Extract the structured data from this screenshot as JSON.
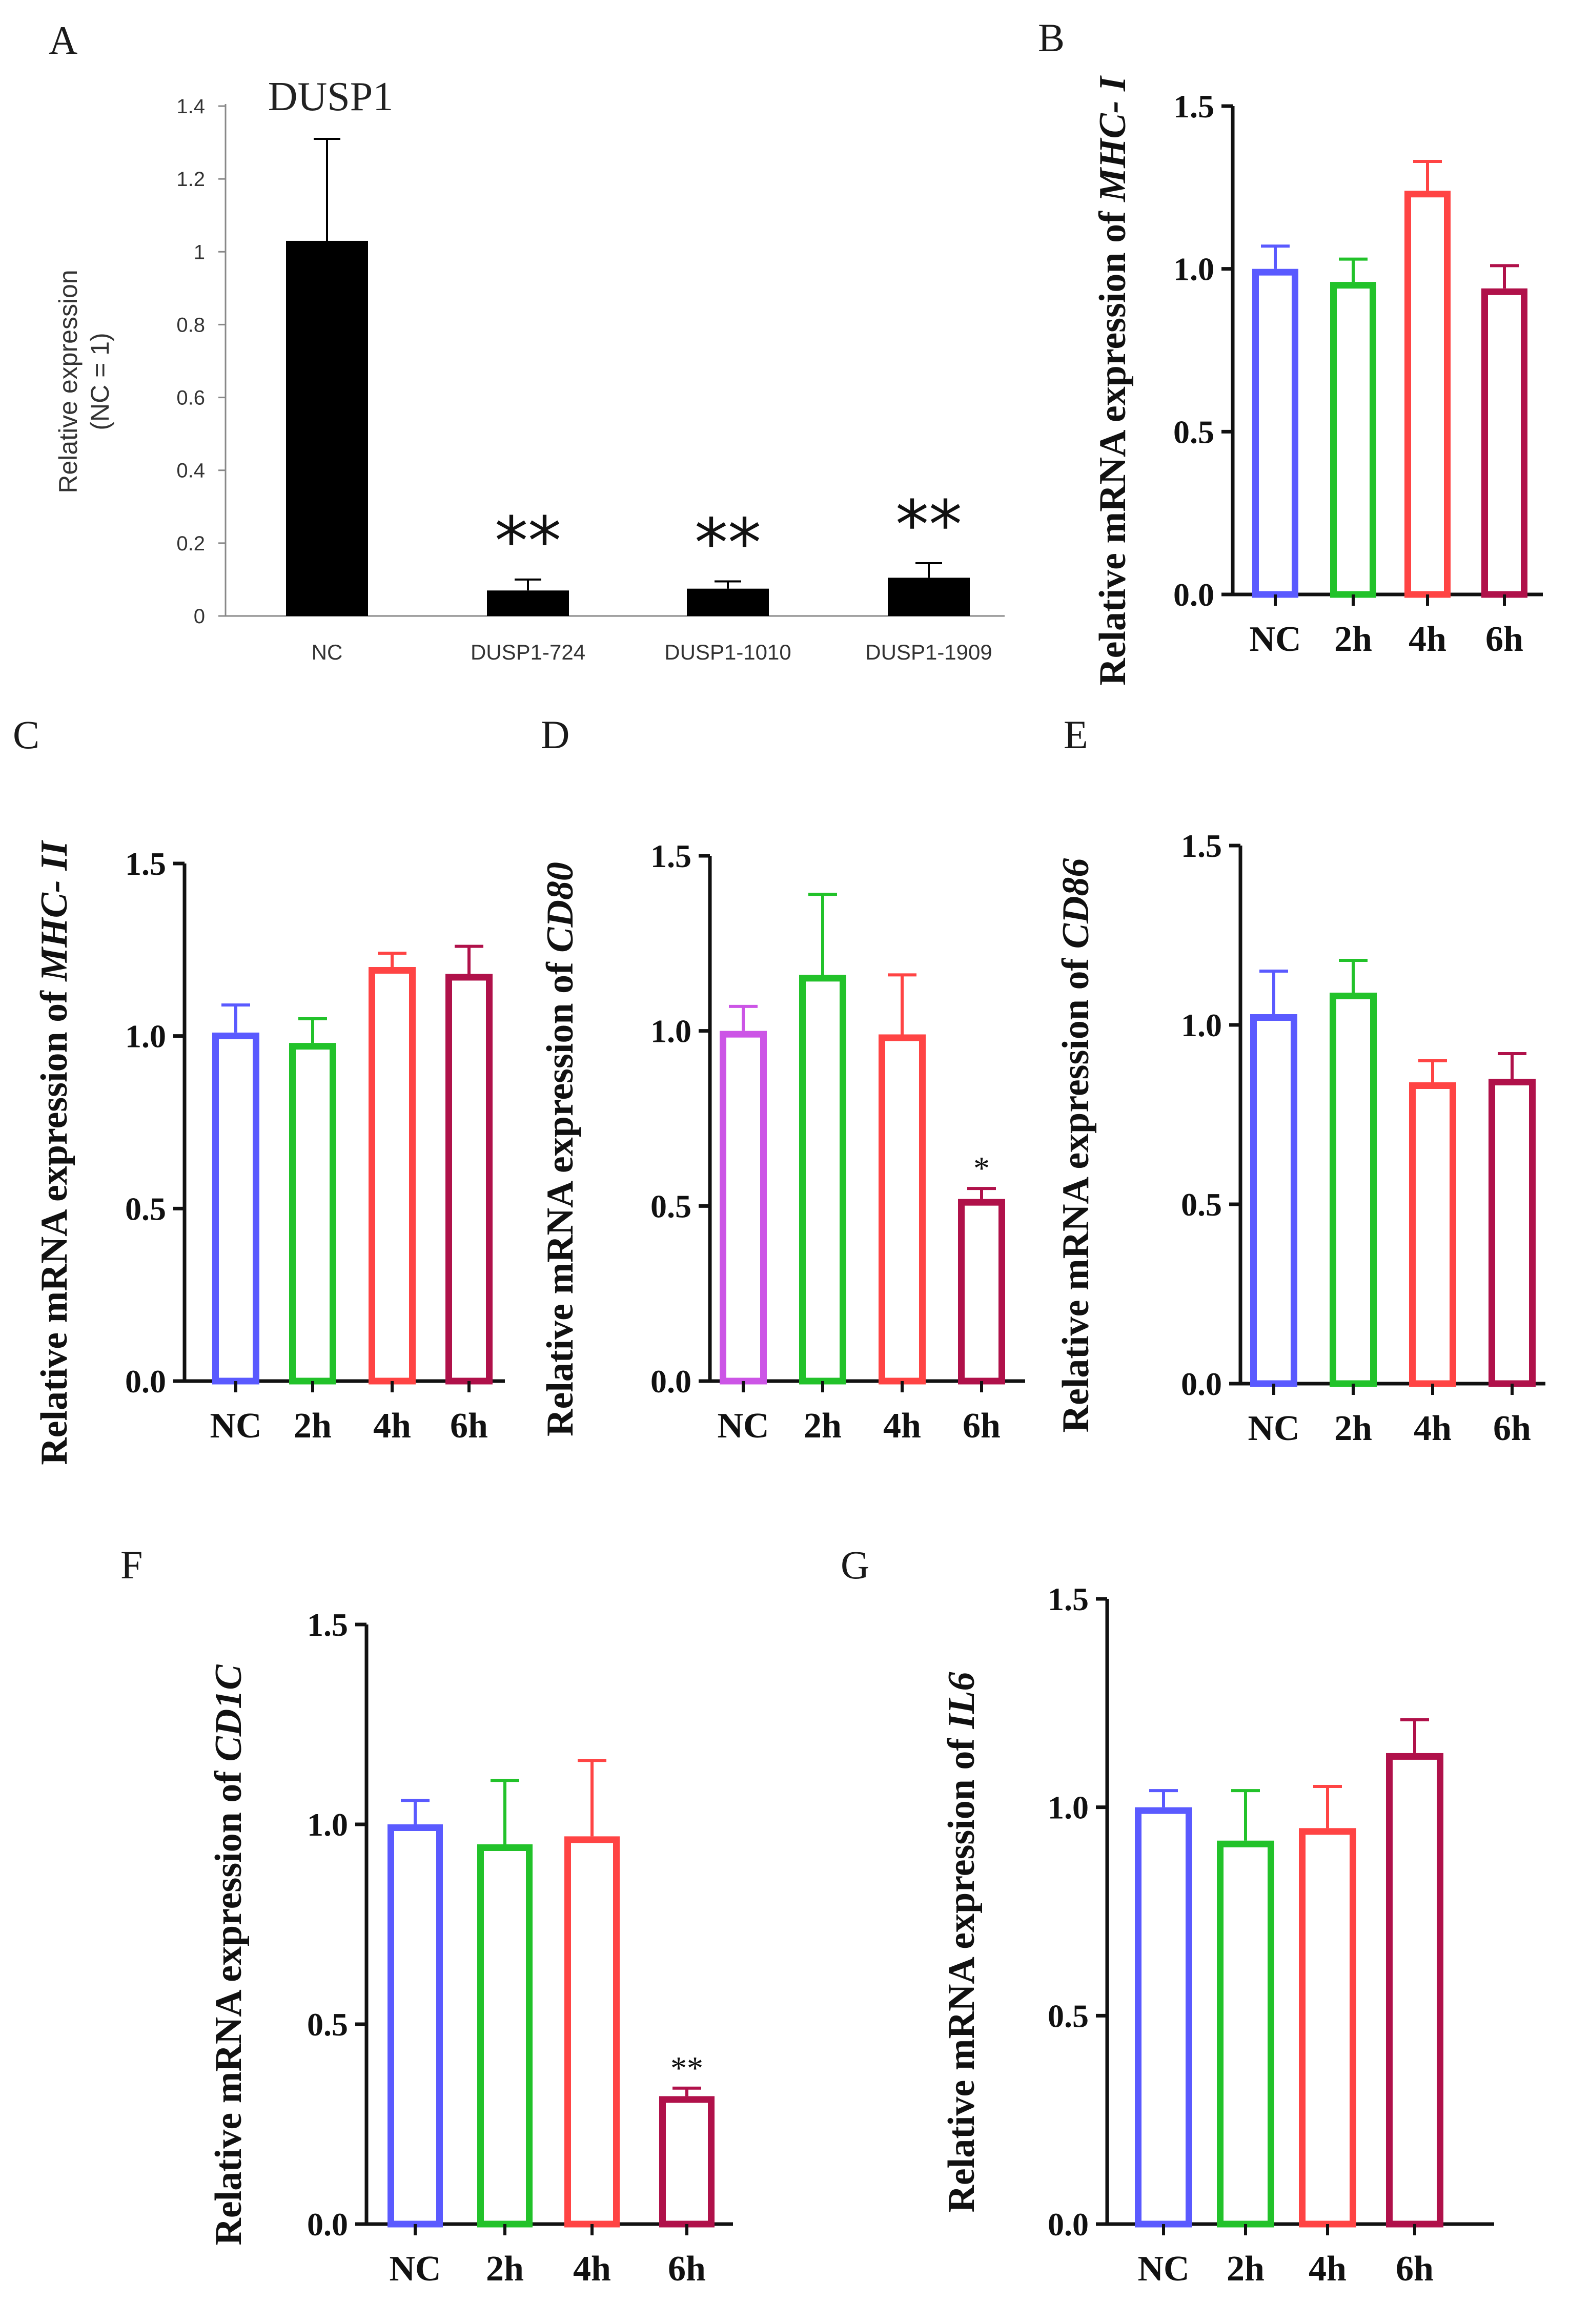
{
  "chart_data": [
    {
      "panel": "A",
      "type": "bar",
      "title": "DUSP1",
      "ylabel_lines": [
        "Relative expression",
        "(NC = 1)"
      ],
      "categories": [
        "NC",
        "DUSP1-724",
        "DUSP1-1010",
        "DUSP1-1909"
      ],
      "values": [
        1.03,
        0.07,
        0.075,
        0.105
      ],
      "errors": [
        0.28,
        0.03,
        0.02,
        0.04
      ],
      "ylim": [
        0,
        1.4
      ],
      "ticks": [
        "0",
        "0.2",
        "0.4",
        "0.6",
        "0.8",
        "1",
        "1.2",
        "1.4"
      ],
      "significance": [
        "",
        "**",
        "**",
        "**"
      ],
      "colors": [
        "#000000",
        "#000000",
        "#000000",
        "#000000"
      ]
    },
    {
      "panel": "B",
      "type": "bar",
      "ylabel_prefix": "Relative mRNA expression of ",
      "gene": "MHC- I",
      "categories": [
        "NC",
        "2h",
        "4h",
        "6h"
      ],
      "values": [
        1.0,
        0.96,
        1.24,
        0.94
      ],
      "errors": [
        0.07,
        0.07,
        0.09,
        0.07
      ],
      "ylim": [
        0,
        1.5
      ],
      "ticks": [
        "0.0",
        "0.5",
        "1.0",
        "1.5"
      ],
      "significance": [
        "",
        "",
        "",
        ""
      ],
      "colors": [
        "#5a5aff",
        "#22c22a",
        "#ff4444",
        "#b0114a"
      ]
    },
    {
      "panel": "C",
      "type": "bar",
      "ylabel_prefix": "Relative mRNA expression of ",
      "gene": "MHC- II",
      "categories": [
        "NC",
        "2h",
        "4h",
        "6h"
      ],
      "values": [
        1.01,
        0.98,
        1.2,
        1.18
      ],
      "errors": [
        0.08,
        0.07,
        0.04,
        0.08
      ],
      "ylim": [
        0,
        1.5
      ],
      "ticks": [
        "0.0",
        "0.5",
        "1.0",
        "1.5"
      ],
      "significance": [
        "",
        "",
        "",
        ""
      ],
      "colors": [
        "#5a5aff",
        "#22c22a",
        "#ff4444",
        "#b0114a"
      ]
    },
    {
      "panel": "D",
      "type": "bar",
      "ylabel_prefix": "Relative mRNA expression of ",
      "gene": "CD80",
      "categories": [
        "NC",
        "2h",
        "4h",
        "6h"
      ],
      "values": [
        1.0,
        1.16,
        0.99,
        0.52
      ],
      "errors": [
        0.07,
        0.23,
        0.17,
        0.03
      ],
      "ylim": [
        0,
        1.5
      ],
      "ticks": [
        "0.0",
        "0.5",
        "1.0",
        "1.5"
      ],
      "significance": [
        "",
        "",
        "",
        "*"
      ],
      "colors": [
        "#cc55e6",
        "#22c22a",
        "#ff4444",
        "#b0114a"
      ]
    },
    {
      "panel": "E",
      "type": "bar",
      "ylabel_prefix": "Relative mRNA expression of ",
      "gene": "CD86",
      "categories": [
        "NC",
        "2h",
        "4h",
        "6h"
      ],
      "values": [
        1.03,
        1.09,
        0.84,
        0.85
      ],
      "errors": [
        0.12,
        0.09,
        0.06,
        0.07
      ],
      "ylim": [
        0,
        1.5
      ],
      "ticks": [
        "0.0",
        "0.5",
        "1.0",
        "1.5"
      ],
      "significance": [
        "",
        "",
        "",
        ""
      ],
      "colors": [
        "#5a5aff",
        "#22c22a",
        "#ff4444",
        "#b0114a"
      ]
    },
    {
      "panel": "F",
      "type": "bar",
      "ylabel_prefix": "Relative mRNA expression of ",
      "gene": "CD1C",
      "categories": [
        "NC",
        "2h",
        "4h",
        "6h"
      ],
      "values": [
        1.0,
        0.95,
        0.97,
        0.32
      ],
      "errors": [
        0.06,
        0.16,
        0.19,
        0.02
      ],
      "ylim": [
        0,
        1.5
      ],
      "ticks": [
        "0.0",
        "0.5",
        "1.0",
        "1.5"
      ],
      "significance": [
        "",
        "",
        "",
        "**"
      ],
      "colors": [
        "#5a5aff",
        "#22c22a",
        "#ff4444",
        "#b0114a"
      ]
    },
    {
      "panel": "G",
      "type": "bar",
      "ylabel_prefix": "Relative mRNA expression of ",
      "gene": "IL6",
      "categories": [
        "NC",
        "2h",
        "4h",
        "6h"
      ],
      "values": [
        1.0,
        0.92,
        0.95,
        1.13
      ],
      "errors": [
        0.04,
        0.12,
        0.1,
        0.08
      ],
      "ylim": [
        0,
        1.5
      ],
      "ticks": [
        "0.0",
        "0.5",
        "1.0",
        "1.5"
      ],
      "significance": [
        "",
        "",
        "",
        ""
      ],
      "colors": [
        "#5a5aff",
        "#22c22a",
        "#ff4444",
        "#b0114a"
      ]
    }
  ]
}
